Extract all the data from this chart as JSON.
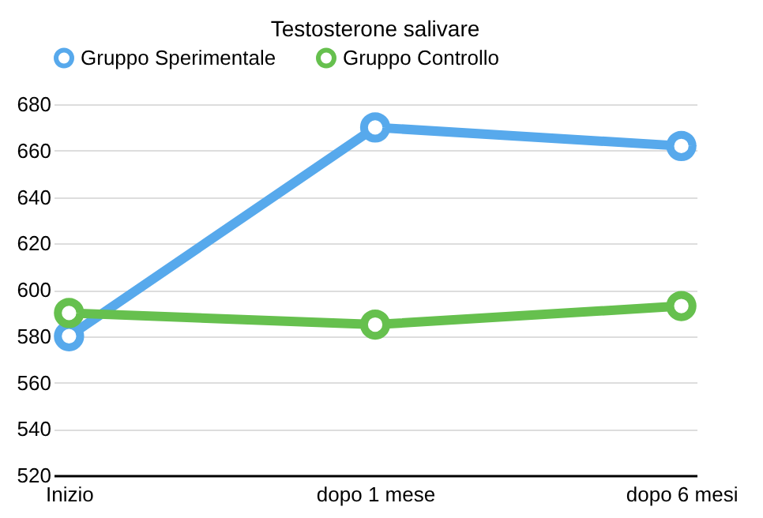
{
  "chart_data": {
    "type": "line",
    "title": "Testosterone salivare",
    "categories": [
      "Inizio",
      "dopo 1 mese",
      "dopo 6 mesi"
    ],
    "series": [
      {
        "name": "Gruppo Sperimentale",
        "color": "#57a9ec",
        "values": [
          580,
          670,
          662
        ]
      },
      {
        "name": "Gruppo Controllo",
        "color": "#66c04e",
        "values": [
          590,
          585,
          593
        ]
      }
    ],
    "ylim": [
      520,
      680
    ],
    "yticks": [
      520,
      540,
      560,
      580,
      600,
      620,
      640,
      660,
      680
    ],
    "grid": "y",
    "legend": "top",
    "marker": "circle",
    "line_style": "solid"
  }
}
